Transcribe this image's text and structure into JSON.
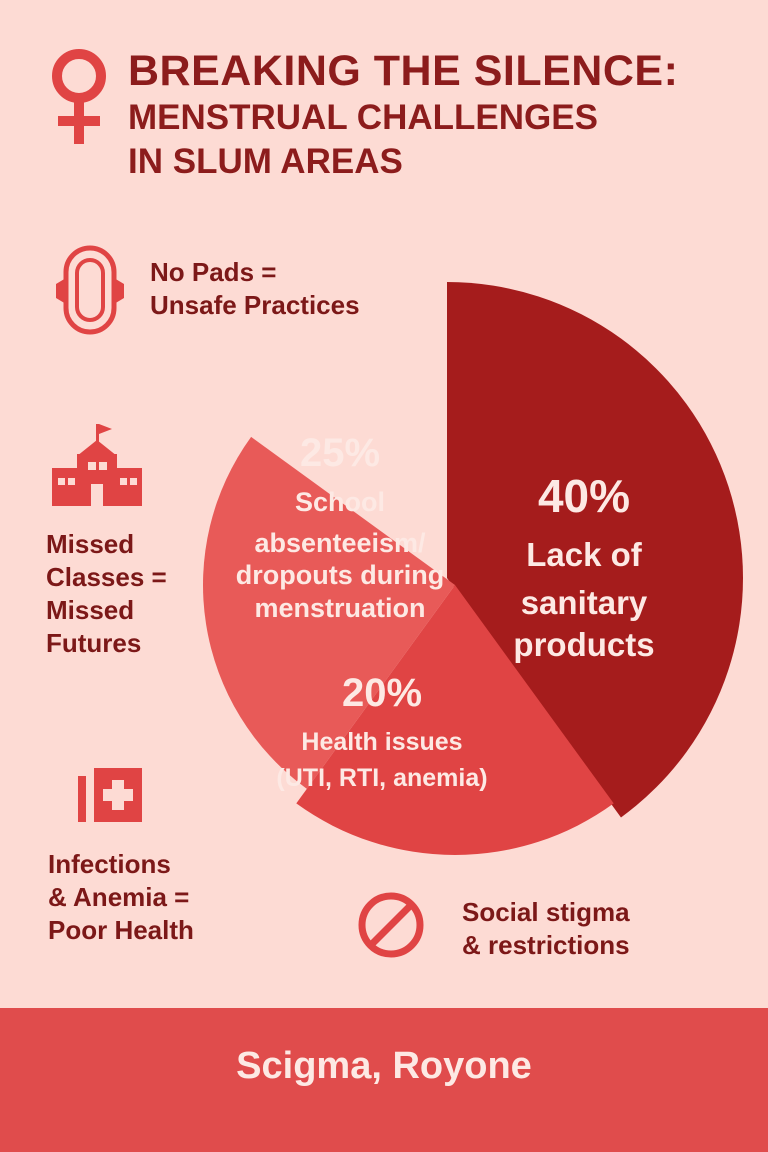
{
  "title": {
    "line1": "BREAKING THE SILENCE:",
    "line2": "MENSTRUAL CHALLENGES",
    "line3": "IN SLUM AREAS"
  },
  "side_items": [
    {
      "icon": "sanitary-pad-icon",
      "lines": [
        "No Pads =",
        "Unsafe Practices"
      ]
    },
    {
      "icon": "school-icon",
      "lines": [
        "Missed",
        "Classes =",
        "Missed",
        "Futures"
      ]
    },
    {
      "icon": "medical-kit-icon",
      "lines": [
        "Infections",
        "& Anemia =",
        "Poor Health"
      ]
    },
    {
      "icon": "prohibited-icon",
      "lines": [
        "Social stigma",
        "& restrictions"
      ]
    }
  ],
  "chart_data": {
    "type": "pie",
    "title": "",
    "slices": [
      {
        "value": 40,
        "pct_label": "40%",
        "label_lines": [
          "Lack of",
          "sanitary",
          "products"
        ],
        "color": "#a51c1c"
      },
      {
        "value": 20,
        "pct_label": "20%",
        "label_lines": [
          "Health issues",
          "(UTI, RTI, anemia)"
        ],
        "color": "#e04444"
      },
      {
        "value": 25,
        "pct_label": "25%",
        "label_lines": [
          "School",
          "absenteeism/",
          "dropouts during",
          "menstruation"
        ],
        "color": "#e85a58"
      }
    ]
  },
  "colors": {
    "background": "#fddbd4",
    "accent": "#e04c4c",
    "dark_red": "#a51c1c"
  },
  "footer": {
    "text": "Scigma, Royone"
  }
}
